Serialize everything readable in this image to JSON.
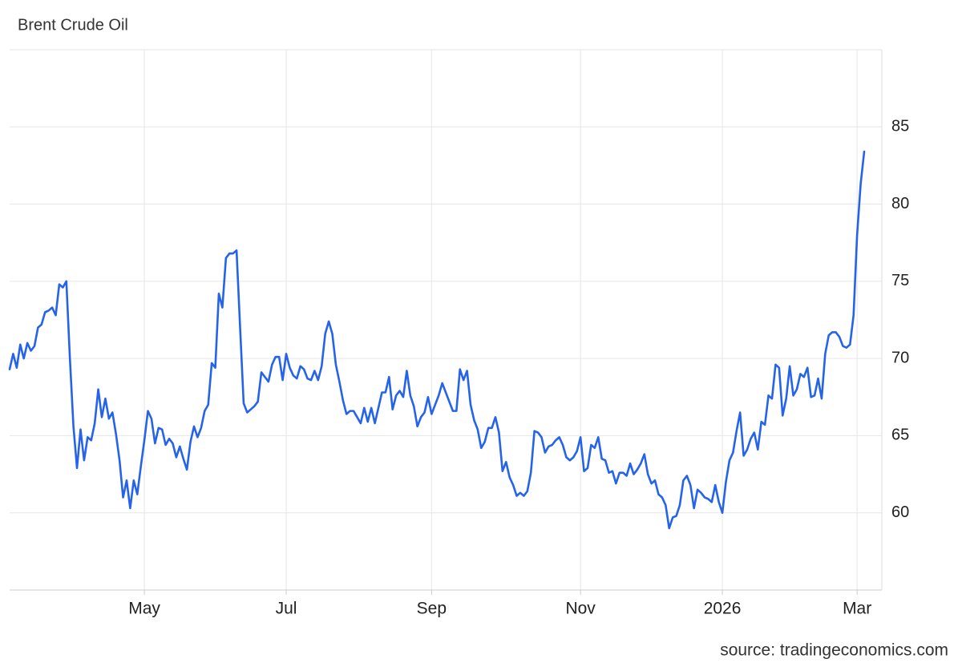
{
  "chart_data": {
    "type": "line",
    "title": "Brent Crude Oil",
    "source": "source: tradingeconomics.com",
    "categories": [
      null,
      null,
      null,
      null,
      null,
      null,
      null,
      null,
      null,
      null,
      null,
      null,
      null,
      null,
      null,
      null,
      null,
      null,
      null,
      null,
      null,
      null,
      null,
      null,
      null,
      null,
      null,
      null,
      null,
      null,
      null,
      null,
      null,
      null,
      null,
      null,
      null,
      null,
      "May",
      null,
      null,
      null,
      null,
      null,
      null,
      null,
      null,
      null,
      null,
      null,
      null,
      null,
      null,
      null,
      null,
      null,
      null,
      null,
      null,
      null,
      null,
      null,
      null,
      null,
      null,
      null,
      null,
      null,
      null,
      null,
      null,
      null,
      null,
      null,
      null,
      null,
      null,
      null,
      "Jul",
      null,
      null,
      null,
      null,
      null,
      null,
      null,
      null,
      null,
      null,
      null,
      null,
      null,
      null,
      null,
      null,
      null,
      null,
      null,
      null,
      null,
      null,
      null,
      null,
      null,
      null,
      null,
      null,
      null,
      null,
      null,
      null,
      null,
      null,
      null,
      null,
      null,
      null,
      null,
      null,
      "Sep",
      null,
      null,
      null,
      null,
      null,
      null,
      null,
      null,
      null,
      null,
      null,
      null,
      null,
      null,
      null,
      null,
      null,
      null,
      null,
      null,
      null,
      null,
      null,
      null,
      null,
      null,
      null,
      null,
      null,
      null,
      null,
      null,
      null,
      null,
      null,
      null,
      null,
      null,
      null,
      null,
      null,
      "Nov",
      null,
      null,
      null,
      null,
      null,
      null,
      null,
      null,
      null,
      null,
      null,
      null,
      null,
      null,
      null,
      null,
      null,
      null,
      null,
      null,
      null,
      null,
      null,
      null,
      null,
      null,
      null,
      null,
      null,
      null,
      null,
      null,
      null,
      null,
      null,
      null,
      null,
      null,
      null,
      "2026",
      null,
      null,
      null,
      null,
      null,
      null,
      null,
      null,
      null,
      null,
      null,
      null,
      null,
      null,
      null,
      null,
      null,
      null,
      null,
      null,
      null,
      null,
      null,
      null,
      null,
      null,
      null,
      null,
      null,
      null,
      null,
      null,
      null,
      null,
      null,
      null,
      null,
      "Mar",
      null,
      null
    ],
    "series": [
      {
        "name": "Brent Crude Oil",
        "color": "#2563eb",
        "values": [
          69.3,
          70.3,
          69.4,
          70.9,
          70.0,
          71.0,
          70.5,
          70.8,
          72.0,
          72.2,
          73.0,
          73.1,
          73.3,
          72.8,
          74.8,
          74.6,
          75.0,
          70.0,
          65.6,
          62.9,
          65.4,
          63.4,
          64.9,
          64.7,
          65.8,
          68.0,
          66.2,
          67.4,
          66.1,
          66.5,
          65.1,
          63.4,
          61.0,
          62.1,
          60.3,
          62.1,
          61.2,
          63.0,
          64.7,
          66.6,
          66.1,
          64.5,
          65.5,
          65.4,
          64.4,
          64.8,
          64.5,
          63.6,
          64.3,
          63.5,
          62.8,
          64.6,
          65.6,
          64.9,
          65.5,
          66.6,
          67.0,
          69.7,
          69.4,
          74.2,
          73.3,
          76.5,
          76.8,
          76.8,
          77.0,
          72.0,
          67.1,
          66.5,
          66.7,
          66.9,
          67.2,
          69.1,
          68.8,
          68.5,
          69.6,
          70.1,
          70.1,
          68.6,
          70.3,
          69.4,
          68.9,
          68.7,
          69.5,
          69.3,
          68.7,
          68.6,
          69.2,
          68.6,
          69.5,
          71.6,
          72.4,
          71.6,
          69.6,
          68.5,
          67.3,
          66.4,
          66.6,
          66.6,
          66.2,
          65.8,
          66.8,
          65.9,
          66.8,
          65.8,
          66.8,
          67.8,
          67.8,
          68.8,
          66.7,
          67.6,
          67.9,
          67.5,
          69.2,
          67.6,
          66.9,
          65.6,
          66.2,
          66.5,
          67.5,
          66.4,
          67.0,
          67.6,
          68.4,
          67.8,
          67.2,
          66.6,
          66.6,
          69.3,
          68.6,
          69.2,
          67.0,
          66.0,
          65.4,
          64.2,
          64.6,
          65.5,
          65.5,
          66.2,
          65.2,
          62.7,
          63.3,
          62.3,
          61.8,
          61.1,
          61.3,
          61.1,
          61.4,
          62.6,
          65.3,
          65.2,
          64.9,
          63.9,
          64.3,
          64.4,
          64.7,
          64.9,
          64.4,
          63.6,
          63.4,
          63.6,
          64.0,
          64.9,
          62.7,
          62.9,
          64.4,
          64.2,
          64.9,
          63.5,
          63.4,
          62.6,
          62.7,
          61.9,
          62.6,
          62.6,
          62.4,
          63.2,
          62.5,
          62.8,
          63.2,
          63.8,
          62.5,
          61.9,
          62.1,
          61.2,
          61.0,
          60.5,
          59.0,
          59.7,
          59.8,
          60.5,
          62.1,
          62.4,
          61.8,
          60.3,
          61.5,
          61.3,
          61.0,
          60.9,
          60.7,
          61.8,
          60.7,
          60.0,
          62.0,
          63.4,
          63.9,
          65.3,
          66.5,
          63.7,
          64.1,
          64.8,
          65.2,
          64.1,
          65.9,
          65.7,
          67.6,
          67.4,
          69.6,
          69.4,
          66.3,
          67.4,
          69.5,
          67.6,
          68.0,
          69.0,
          68.8,
          69.4,
          67.5,
          67.6,
          68.7,
          67.4,
          70.3,
          71.5,
          71.7,
          71.7,
          71.4,
          70.8,
          70.7,
          70.9,
          72.8,
          78.0,
          81.3,
          83.4
        ]
      }
    ],
    "ylim": [
      55,
      90
    ],
    "yticks": [
      60,
      65,
      70,
      75,
      80,
      85
    ],
    "grid": true
  }
}
